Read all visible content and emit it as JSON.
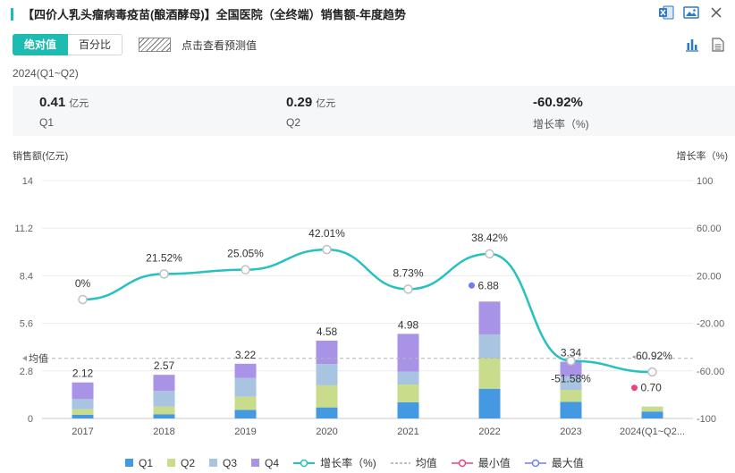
{
  "header": {
    "title": "【四价人乳头瘤病毒疫苗(酿酒酵母)】全国医院（全终端）销售额-年度趋势"
  },
  "toolbar": {
    "tabs": [
      {
        "label": "绝对值"
      },
      {
        "label": "百分比"
      }
    ],
    "predict_label": "点击查看预测值"
  },
  "period": "2024(Q1~Q2)",
  "summary": {
    "q1": {
      "value": "0.41",
      "unit": "亿元",
      "label": "Q1"
    },
    "q2": {
      "value": "0.29",
      "unit": "亿元",
      "label": "Q2"
    },
    "growth": {
      "value": "-60.92%",
      "label": "增长率（%)"
    }
  },
  "colors": {
    "Q1": "#4499e0",
    "Q2": "#c9dc8c",
    "Q3": "#a9c4e0",
    "Q4": "#a993e6",
    "line": "#26c1c0",
    "avg": "#b5b5b5",
    "min": "#e8457a",
    "max": "#6f7fe8"
  },
  "chart_data": {
    "type": "bar",
    "categories": [
      "2017",
      "2018",
      "2019",
      "2020",
      "2021",
      "2022",
      "2023",
      "2024(Q1~Q2..."
    ],
    "series": [
      {
        "name": "Q1",
        "values": [
          0.22,
          0.25,
          0.5,
          0.65,
          0.95,
          1.75,
          0.98,
          0.41
        ]
      },
      {
        "name": "Q2",
        "values": [
          0.32,
          0.45,
          0.78,
          1.3,
          1.05,
          1.8,
          0.7,
          0.29
        ]
      },
      {
        "name": "Q3",
        "values": [
          0.6,
          0.92,
          1.1,
          1.25,
          0.75,
          1.4,
          0.8,
          0
        ]
      },
      {
        "name": "Q4",
        "values": [
          0.98,
          0.95,
          0.84,
          1.38,
          2.23,
          1.93,
          0.86,
          0
        ]
      }
    ],
    "totals": [
      "2.12",
      "2.57",
      "3.22",
      "4.58",
      "4.98",
      "6.88",
      "3.34",
      "0.70"
    ],
    "growth": {
      "name": "增长率（%)",
      "values": [
        0,
        21.52,
        25.05,
        42.01,
        8.73,
        38.42,
        -51.58,
        -60.92
      ],
      "labels": [
        "0%",
        "21.52%",
        "25.05%",
        "42.01%",
        "8.73%",
        "38.42%",
        "-51.58%",
        "-60.92%"
      ]
    },
    "average": 3.54,
    "average_label": "均值",
    "max_index": 5,
    "min_index": 7,
    "y_left": {
      "label": "销售额(亿元)",
      "ticks": [
        "0",
        "2.8",
        "5.6",
        "8.4",
        "11.2",
        "14"
      ],
      "range": [
        0,
        14
      ]
    },
    "y_right": {
      "label": "增长率（%)",
      "ticks": [
        "-100",
        "-60.00",
        "-20.00",
        "20.00",
        "60.00",
        "100"
      ],
      "range": [
        -100,
        100
      ]
    }
  },
  "legend": [
    {
      "label": "Q1"
    },
    {
      "label": "Q2"
    },
    {
      "label": "Q3"
    },
    {
      "label": "Q4"
    },
    {
      "label": "增长率（%)"
    },
    {
      "label": "均值"
    },
    {
      "label": "最小值"
    },
    {
      "label": "最大值"
    }
  ]
}
